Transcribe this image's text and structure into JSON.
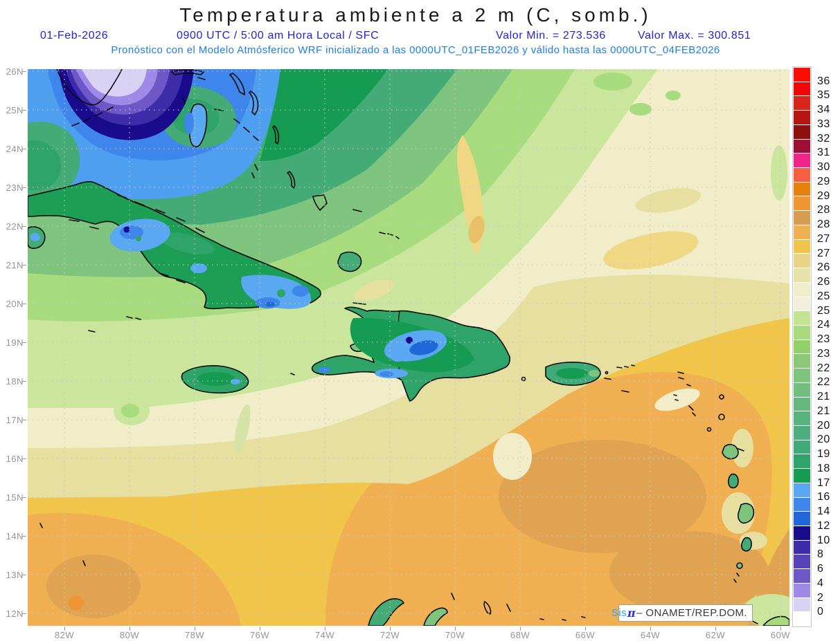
{
  "header": {
    "title": "Temperatura ambiente a 2 m (C, somb.)",
    "date": "01-Feb-2026",
    "time": "0900 UTC / 5:00 am Hora Local / SFC",
    "valor_min": "Valor Min. = 273.536",
    "valor_max": "Valor Max. = 300.851",
    "forecast": "Pronóstico con el Modelo Atmósferico WRF inicializado a las 0000UTC_01FEB2026 y válido hasta las  0000UTC_04FEB2026"
  },
  "map": {
    "y_ticks": [
      "26N",
      "25N",
      "24N",
      "23N",
      "22N",
      "21N",
      "20N",
      "19N",
      "18N",
      "17N",
      "16N",
      "15N",
      "14N",
      "13N",
      "12N"
    ],
    "x_ticks": [
      "82W",
      "80W",
      "78W",
      "76W",
      "74W",
      "72W",
      "70W",
      "68W",
      "66W",
      "64W",
      "62W",
      "60W"
    ],
    "watermark": {
      "sis": "Sis",
      "pi": "π",
      "rest": "– ONAMET/REP.DOM."
    }
  },
  "colorbar": {
    "labels": [
      "36",
      "35",
      "34",
      "33",
      "32",
      "31.5",
      "30.7",
      "29.7",
      "29",
      "28.5",
      "28",
      "27.5",
      "27",
      "26.5",
      "26",
      "25.5",
      "25",
      "24",
      "23.5",
      "23",
      "22.5",
      "22",
      "21.5",
      "21",
      "20.5",
      "20",
      "19",
      "18",
      "17",
      "16",
      "14",
      "12",
      "10",
      "8",
      "6",
      "4",
      "2",
      "0"
    ],
    "colors": [
      "#FB0D05",
      "#F00505",
      "#D9241A",
      "#B41712",
      "#8F0E0E",
      "#9C0E35",
      "#F0258C",
      "#F85F42",
      "#E5800D",
      "#EE9633",
      "#D89C50",
      "#F0B052",
      "#F0C54A",
      "#E9D387",
      "#E6E3A8",
      "#F0EDC8",
      "#F2F0DC",
      "#C4E494",
      "#A8DA7E",
      "#92D165",
      "#8CC878",
      "#7EC47E",
      "#72BE7E",
      "#64B87E",
      "#58B47E",
      "#4CAE7C",
      "#40AA78",
      "#2FA468",
      "#159B52",
      "#5BA8F2",
      "#3E86EC",
      "#2068D8",
      "#1A0A8C",
      "#3F2CA8",
      "#5742B8",
      "#6E58C8",
      "#9F8AE8",
      "#D8D2F5",
      "#FFFFFF"
    ]
  },
  "colors": {
    "header_blue": "#2222DD",
    "forecast_blue": "#1E7EE8",
    "sis_blue": "#2AA3F7",
    "pi_blue": "#2B2BE0",
    "grid": "#c8c8c8",
    "coast": "#0a0a0a"
  },
  "chart_data": {
    "type": "filled_contour_map",
    "title": "Temperatura ambiente a 2 m (C, somb.)",
    "variable": "2 m air temperature, shaded (C)",
    "valid_time": "01-Feb-2026 0900 UTC / 5:00 am Hora Local / SFC",
    "model_run": "WRF inicializado 0000UTC_01FEB2026, válido hasta 0000UTC_04FEB2026",
    "value_min": 273.536,
    "value_max": 300.851,
    "lat_ticks_n": [
      26,
      25,
      24,
      23,
      22,
      21,
      20,
      19,
      18,
      17,
      16,
      15,
      14,
      13,
      12
    ],
    "lon_ticks_w": [
      82,
      80,
      78,
      76,
      74,
      72,
      70,
      68,
      66,
      64,
      62,
      60
    ],
    "scale_values_c": [
      36,
      35,
      34,
      33,
      32,
      31.5,
      30.7,
      29.7,
      29,
      28.5,
      28,
      27.5,
      27,
      26.5,
      26,
      25.5,
      25,
      24,
      23.5,
      23,
      22.5,
      22,
      21.5,
      21,
      20.5,
      20,
      19,
      18,
      17,
      16,
      14,
      12,
      10,
      8,
      6,
      4,
      2,
      0
    ],
    "legend_position": "right",
    "grid": "dotted, 1 deg lat x 2 deg lon",
    "features": "Cold core (0-8C) over south Florida; navy-blue pocket 10-12C offshore; islands (Cuba, Hispaniola, Jamaica, Puerto Rico) 17-23C with mountain cold pools 10-16C; NW Atlantic 20-25C greens; NE Atlantic pale 25-26C; Caribbean Sea 26.5-28.5C golden-orange, warmest SE"
  }
}
